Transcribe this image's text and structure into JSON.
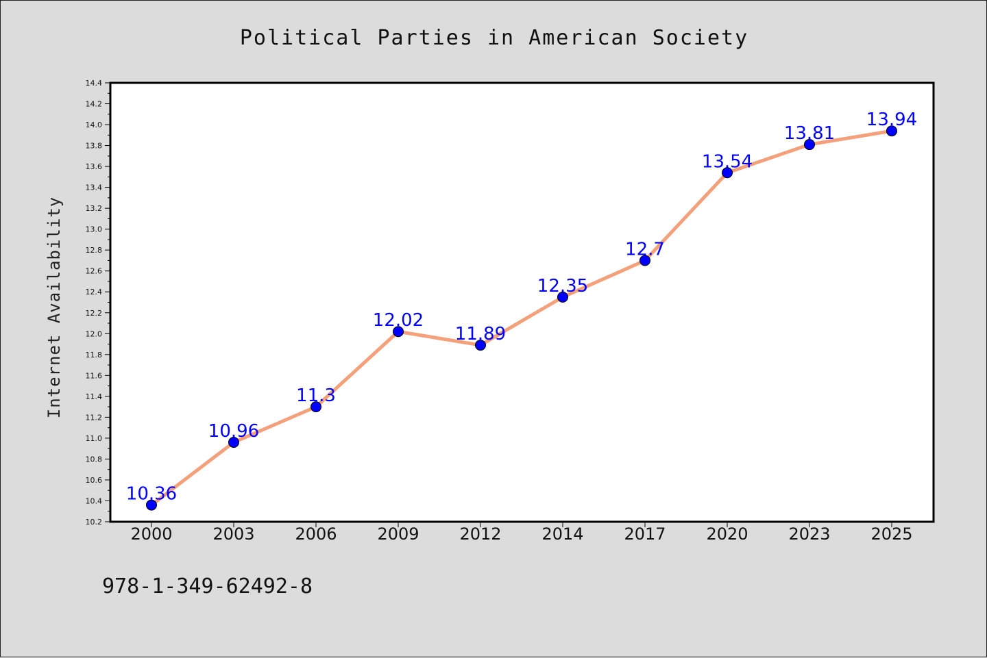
{
  "chart_data": {
    "type": "line",
    "title": "Political Parties in American Society",
    "xlabel": "",
    "ylabel": "Internet Availability",
    "categories": [
      "2000",
      "2003",
      "2006",
      "2009",
      "2012",
      "2014",
      "2017",
      "2020",
      "2023",
      "2025"
    ],
    "series": [
      {
        "values": [
          10.36,
          10.96,
          11.3,
          12.02,
          11.89,
          12.35,
          12.7,
          13.54,
          13.81,
          13.94
        ],
        "labels": [
          "10.36",
          "10.96",
          "11.3",
          "12.02",
          "11.89",
          "12.35",
          "12.7",
          "13.54",
          "13.81",
          "13.94"
        ],
        "line_color": "#f4a07a",
        "marker_color": "#0000ff"
      }
    ],
    "ylim": [
      10.2,
      14.4
    ],
    "yticks": [
      "10.2",
      "10.4",
      "10.6",
      "10.8",
      "11.0",
      "11.2",
      "11.4",
      "11.6",
      "11.8",
      "12.0",
      "12.2",
      "12.4",
      "12.6",
      "12.8",
      "13.0",
      "13.2",
      "13.4",
      "13.6",
      "13.8",
      "14.0",
      "14.2",
      "14.4"
    ],
    "grid": false,
    "legend": "none"
  },
  "footer": {
    "isbn": "978-1-349-62492-8"
  },
  "colors": {
    "background": "#dcdcdc",
    "plot_background": "#ffffff",
    "line": "#f4a07a",
    "marker": "#0000ff",
    "data_label": "#0000ff"
  }
}
